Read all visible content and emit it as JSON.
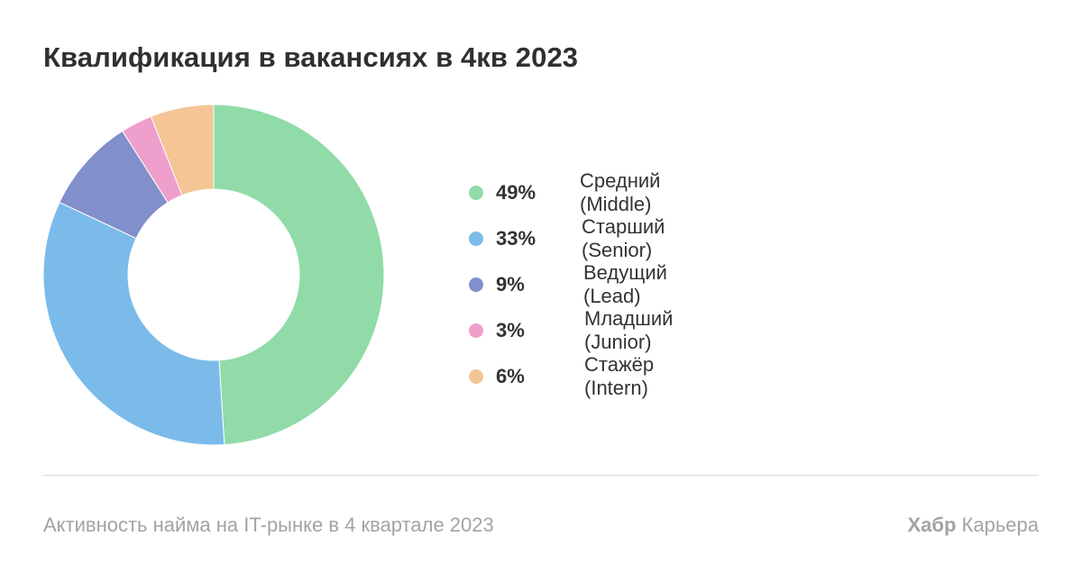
{
  "title": "Квалификация в вакансиях в 4кв 2023",
  "chart_data": {
    "type": "pie",
    "title": "Квалификация в вакансиях в 4кв 2023",
    "series": [
      {
        "label": "Средний (Middle)",
        "value": 49,
        "display": "49%",
        "color": "#90dba8"
      },
      {
        "label": "Старший (Senior)",
        "value": 33,
        "display": "33%",
        "color": "#7bbbe9"
      },
      {
        "label": "Ведущий (Lead)",
        "value": 9,
        "display": "9%",
        "color": "#818fca"
      },
      {
        "label": "Младший (Junior)",
        "value": 3,
        "display": "3%",
        "color": "#ef9fcb"
      },
      {
        "label": "Стажёр (Intern)",
        "value": 6,
        "display": "6%",
        "color": "#f5c596"
      }
    ],
    "legend_position": "right"
  },
  "footer": {
    "caption": "Активность найма на IT-рынке в 4 квартале 2023",
    "brand_bold": "Хабр",
    "brand_regular": "Карьера"
  }
}
